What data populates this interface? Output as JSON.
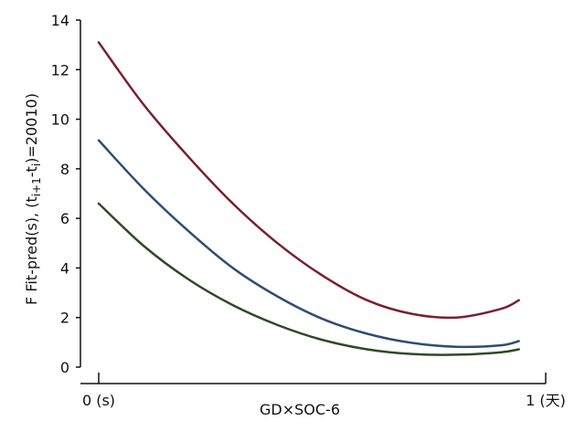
{
  "chart_data": {
    "type": "line",
    "xlabel": "GD×SOC-6",
    "ylabel": "F Fit-pred(s), (t_{i+1}-t_i)=20010",
    "ylabel_parts": {
      "prefix": "F Fit-pred(s), (t",
      "sub1": "i+1",
      "mid": "-t",
      "sub2": "i",
      "suffix": ")=20010)"
    },
    "x_tick_labels": [
      "0 (s)",
      "1 (天)"
    ],
    "x_ticks": [
      0,
      1
    ],
    "xlim": [
      0,
      1
    ],
    "ylim": [
      0,
      14
    ],
    "y_ticks": [
      0,
      2,
      4,
      6,
      8,
      10,
      12,
      14
    ],
    "y_tick_labels": [
      "0",
      "2",
      "4",
      "6",
      "8",
      "10",
      "12",
      "14"
    ],
    "grid": false,
    "series": [
      {
        "color": "#7a1f2f",
        "x": [
          0.0,
          0.1,
          0.2,
          0.3,
          0.4,
          0.5,
          0.6,
          0.7,
          0.8,
          0.9,
          0.94
        ],
        "values": [
          13.1,
          10.6,
          8.5,
          6.6,
          5.0,
          3.7,
          2.7,
          2.15,
          2.0,
          2.35,
          2.7
        ]
      },
      {
        "color": "#2f4d72",
        "x": [
          0.0,
          0.1,
          0.2,
          0.3,
          0.4,
          0.5,
          0.6,
          0.7,
          0.8,
          0.9,
          0.94
        ],
        "values": [
          9.15,
          7.2,
          5.5,
          4.0,
          2.85,
          1.95,
          1.35,
          0.98,
          0.82,
          0.88,
          1.05
        ]
      },
      {
        "color": "#2d4a26",
        "x": [
          0.0,
          0.1,
          0.2,
          0.3,
          0.4,
          0.5,
          0.6,
          0.7,
          0.8,
          0.9,
          0.94
        ],
        "values": [
          6.6,
          4.9,
          3.55,
          2.5,
          1.7,
          1.1,
          0.72,
          0.53,
          0.5,
          0.6,
          0.72
        ]
      }
    ],
    "colors": {
      "axis": "#111111",
      "background": "#ffffff"
    }
  }
}
